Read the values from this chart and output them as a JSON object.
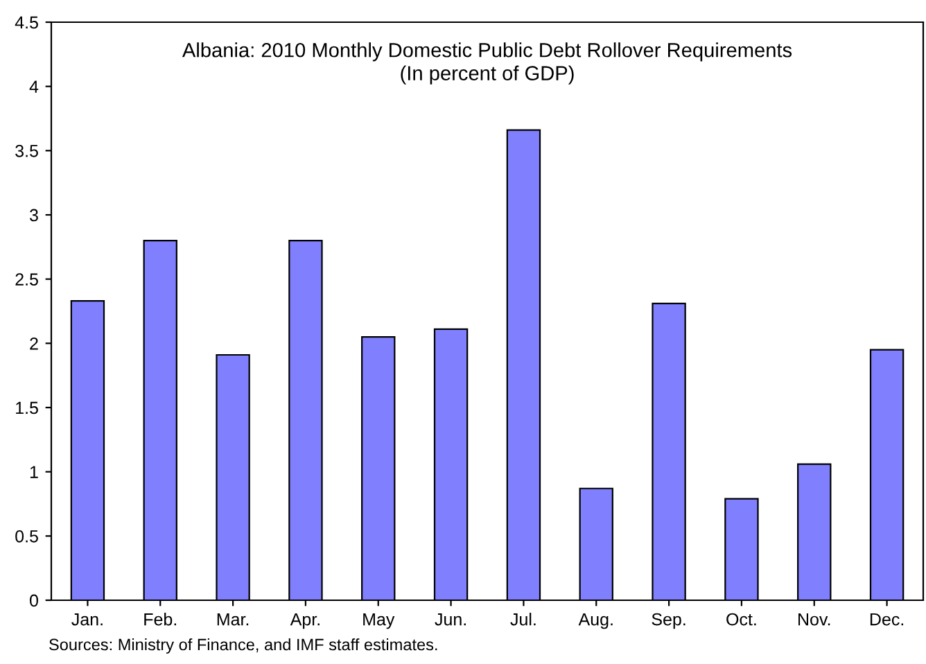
{
  "chart_data": {
    "type": "bar",
    "title": "Albania: 2010 Monthly Domestic Public Debt Rollover Requirements",
    "subtitle": "(In percent of GDP)",
    "categories": [
      "Jan.",
      "Feb.",
      "Mar.",
      "Apr.",
      "May",
      "Jun.",
      "Jul.",
      "Aug.",
      "Sep.",
      "Oct.",
      "Nov.",
      "Dec."
    ],
    "values": [
      2.33,
      2.8,
      1.91,
      2.8,
      2.05,
      2.11,
      3.66,
      0.87,
      2.31,
      0.79,
      1.06,
      1.95
    ],
    "color": "#8080ff",
    "ylim": [
      0,
      4.5
    ],
    "yticks": [
      0,
      0.5,
      1,
      1.5,
      2,
      2.5,
      3,
      3.5,
      4,
      4.5
    ],
    "grid": false,
    "legend": false,
    "annotations": [
      "Sources: Ministry of Finance, and IMF staff estimates."
    ]
  }
}
